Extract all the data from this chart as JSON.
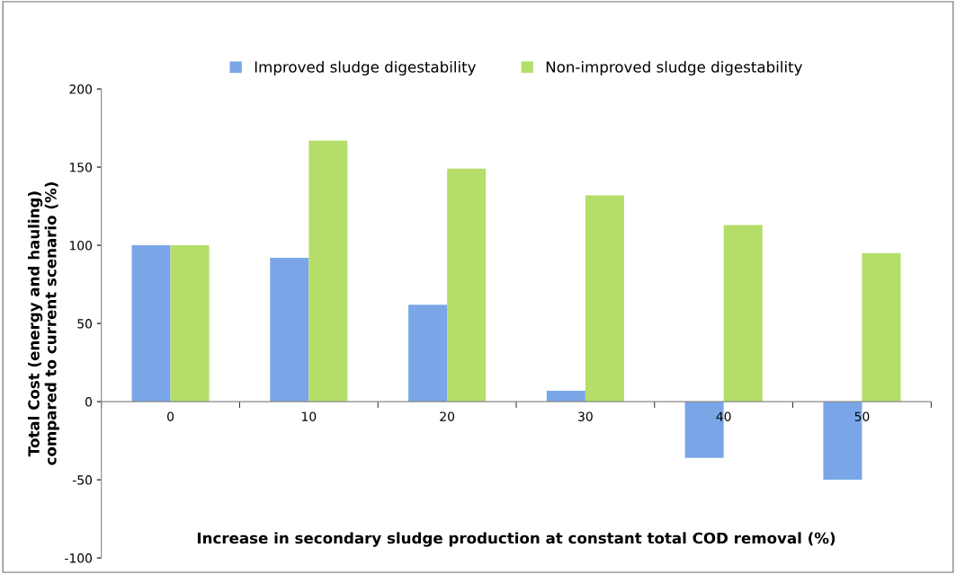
{
  "chart_data": {
    "type": "bar",
    "xlabel": "Increase in secondary sludge production at constant total COD removal (%)",
    "ylabel": "Total Cost (energy and hauling)\ncompared to current scenario (%)",
    "categories": [
      "0",
      "10",
      "20",
      "30",
      "40",
      "50"
    ],
    "series": [
      {
        "name": "Improved sludge digestability",
        "color": "#7aa6e8",
        "values": [
          100,
          92,
          62,
          7,
          -36,
          -50
        ]
      },
      {
        "name": "Non-improved sludge digestability",
        "color": "#b5dd6a",
        "values": [
          100,
          167,
          149,
          132,
          113,
          95
        ]
      }
    ],
    "ylim": [
      -100,
      200
    ],
    "yticks": [
      -100,
      -50,
      0,
      50,
      100,
      150,
      200
    ],
    "grid": false,
    "legend": "top"
  }
}
